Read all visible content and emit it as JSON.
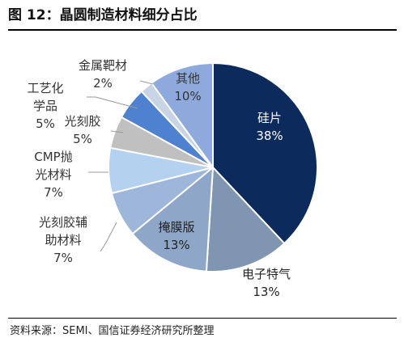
{
  "header": {
    "title": "图 12：晶圆制造材料细分占比"
  },
  "footer": {
    "source": "资料来源：SEMI、国信证券经济研究所整理"
  },
  "chart_data": {
    "type": "pie",
    "title": "",
    "slices": [
      {
        "name": "硅片",
        "value": 38,
        "label_lines": [
          "硅片",
          "38%"
        ],
        "color": "#0c2a5c",
        "text_color": "#ffffff"
      },
      {
        "name": "电子特气",
        "value": 13,
        "label_lines": [
          "电子特气",
          "13%"
        ],
        "color": "#7f95b1",
        "text_color": "#222222"
      },
      {
        "name": "掩膜版",
        "value": 13,
        "label_lines": [
          "掩膜版",
          "13%"
        ],
        "color": "#8ea6c8",
        "text_color": "#222222"
      },
      {
        "name": "光刻胶辅助材料",
        "value": 7,
        "label_lines": [
          "光刻胶辅",
          "助材料",
          "7%"
        ],
        "color": "#9eb6da",
        "text_color": "#333333"
      },
      {
        "name": "CMP抛光材料",
        "value": 7,
        "label_lines": [
          "CMP抛",
          "光材料",
          "7%"
        ],
        "color": "#b4d2ef",
        "text_color": "#333333"
      },
      {
        "name": "光刻胶",
        "value": 5,
        "label_lines": [
          "光刻胶",
          "5%"
        ],
        "color": "#c0c0c0",
        "text_color": "#333333"
      },
      {
        "name": "工艺化学品",
        "value": 5,
        "label_lines": [
          "工艺化",
          "学品",
          "5%"
        ],
        "color": "#4f81d1",
        "text_color": "#333333"
      },
      {
        "name": "金属靶材",
        "value": 2,
        "label_lines": [
          "金属靶材",
          "2%"
        ],
        "color": "#c8d4e4",
        "text_color": "#333333"
      },
      {
        "name": "其他",
        "value": 10,
        "label_lines": [
          "其他",
          "10%"
        ],
        "color": "#8eaadc",
        "text_color": "#333333"
      }
    ]
  }
}
